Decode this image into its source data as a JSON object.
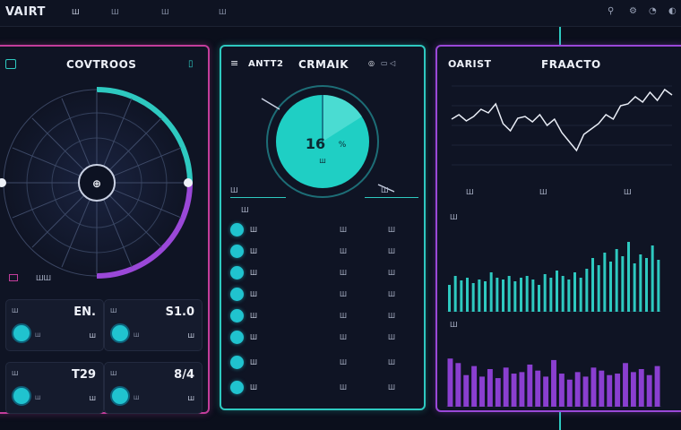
{
  "app": {
    "title": "VAIRT"
  },
  "nav": [
    "Ш",
    "Ш",
    "Ш",
    "Ш"
  ],
  "left_panel": {
    "title": "COVTROOS",
    "footer_label": "ШШ",
    "stats": [
      {
        "label": "Ш",
        "value": "EN.",
        "sub": "Ш",
        "sub_value": "Ш"
      },
      {
        "label": "Ш",
        "value": "S1.0",
        "sub": "Ш",
        "sub_value": "Ш"
      },
      {
        "label": "Ш",
        "value": "T29",
        "sub": "Ш",
        "sub_value": "Ш"
      },
      {
        "label": "Ш",
        "value": "8/4",
        "sub": "Ш",
        "sub_value": "Ш"
      }
    ]
  },
  "mid_panel": {
    "title_left": "ANTT2",
    "title_main": "CRMAIK",
    "gauge": {
      "value": "16",
      "unit": "%",
      "sub": "Ш",
      "fill": 0.16
    },
    "left_label": "Ш",
    "right_label": "Ш",
    "list_header": "Ш",
    "rows": [
      {
        "name": "Ш",
        "v1": "Ш",
        "v2": "Ш"
      },
      {
        "name": "Ш",
        "v1": "Ш",
        "v2": "Ш"
      },
      {
        "name": "Ш",
        "v1": "Ш",
        "v2": "Ш"
      },
      {
        "name": "Ш",
        "v1": "Ш",
        "v2": "Ш"
      },
      {
        "name": "Ш",
        "v1": "Ш",
        "v2": "Ш"
      },
      {
        "name": "Ш",
        "v1": "Ш",
        "v2": "Ш"
      },
      {
        "name": "Ш",
        "v1": "Ш",
        "v2": "Ш"
      },
      {
        "name": "Ш",
        "v1": "Ш",
        "v2": "Ш"
      }
    ]
  },
  "right_panel": {
    "title_left": "OARIST",
    "title_main": "FRAACTO",
    "line_labels": [
      "Ш",
      "Ш",
      "Ш"
    ],
    "section2_title": "Ш",
    "section3_title": "Ш"
  },
  "chart_data": [
    {
      "type": "line",
      "x": [
        0,
        1,
        2,
        3,
        4,
        5,
        6,
        7,
        8,
        9,
        10,
        11,
        12,
        13,
        14,
        15,
        16,
        17,
        18,
        19,
        20,
        21,
        22,
        23,
        24,
        25,
        26,
        27,
        28,
        29,
        30
      ],
      "values": [
        55,
        60,
        53,
        58,
        66,
        62,
        72,
        50,
        42,
        56,
        58,
        52,
        60,
        48,
        55,
        40,
        30,
        20,
        38,
        44,
        50,
        60,
        55,
        70,
        72,
        80,
        74,
        85,
        76,
        88,
        82
      ],
      "title": "",
      "xlabel": "",
      "ylabel": "",
      "ylim": [
        0,
        100
      ]
    },
    {
      "type": "bar",
      "values": [
        30,
        40,
        35,
        38,
        32,
        36,
        34,
        44,
        38,
        36,
        40,
        34,
        38,
        40,
        36,
        30,
        42,
        38,
        46,
        40,
        36,
        44,
        38,
        48,
        60,
        52,
        66,
        56,
        70,
        62,
        78,
        54,
        64,
        60,
        74,
        58
      ],
      "title": "",
      "xlabel": "",
      "ylabel": "",
      "ylim": [
        0,
        100
      ]
    },
    {
      "type": "bar",
      "values": [
        64,
        58,
        42,
        54,
        40,
        50,
        38,
        52,
        44,
        46,
        56,
        48,
        40,
        62,
        44,
        36,
        46,
        40,
        52,
        48,
        42,
        44,
        58,
        46,
        50,
        42,
        54
      ],
      "title": "",
      "xlabel": "",
      "ylabel": "",
      "ylim": [
        0,
        100
      ]
    }
  ],
  "colors": {
    "magenta": "#c23d9b",
    "cyan": "#2ec9c0",
    "violet": "#9a48d8"
  }
}
